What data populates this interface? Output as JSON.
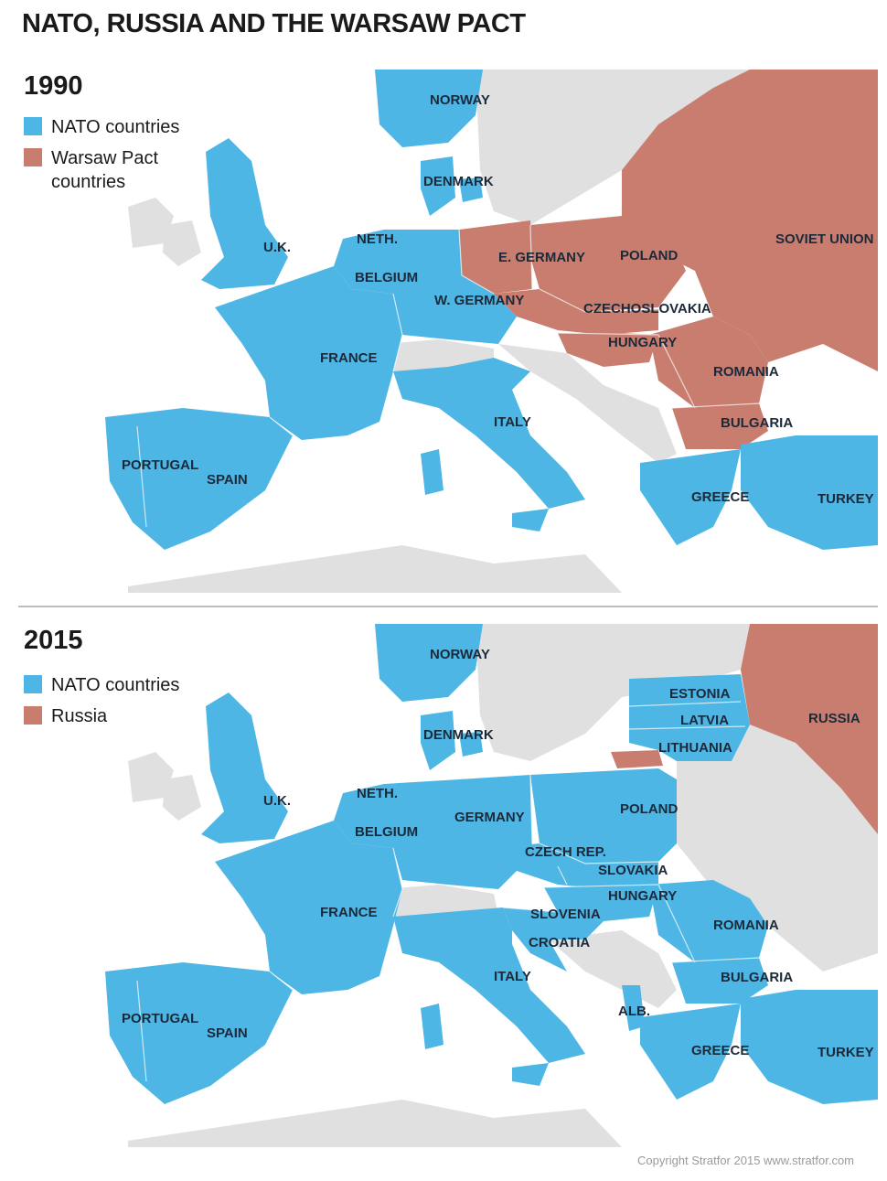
{
  "title": "NATO, RUSSIA AND THE WARSAW PACT",
  "colors": {
    "nato": "#4db6e4",
    "warsaw": "#c87d6f",
    "other_land": "#e0e0e0",
    "sea": "#ffffff"
  },
  "maps": [
    {
      "year": "1990",
      "legend": [
        {
          "label": "NATO countries",
          "color": "#4db6e4"
        },
        {
          "label": "Warsaw Pact countries",
          "color": "#c87d6f"
        }
      ],
      "labels": [
        "NORWAY",
        "DENMARK",
        "U.K.",
        "NETH.",
        "BELGIUM",
        "W. GERMANY",
        "E. GERMANY",
        "POLAND",
        "SOVIET UNION",
        "CZECHOSLOVAKIA",
        "HUNGARY",
        "ROMANIA",
        "BULGARIA",
        "FRANCE",
        "ITALY",
        "PORTUGAL",
        "SPAIN",
        "GREECE",
        "TURKEY"
      ]
    },
    {
      "year": "2015",
      "legend": [
        {
          "label": "NATO countries",
          "color": "#4db6e4"
        },
        {
          "label": "Russia",
          "color": "#c87d6f"
        }
      ],
      "labels": [
        "NORWAY",
        "DENMARK",
        "ESTONIA",
        "LATVIA",
        "LITHUANIA",
        "RUSSIA",
        "U.K.",
        "NETH.",
        "BELGIUM",
        "GERMANY",
        "POLAND",
        "CZECH REP.",
        "SLOVAKIA",
        "HUNGARY",
        "SLOVENIA",
        "CROATIA",
        "ROMANIA",
        "BULGARIA",
        "FRANCE",
        "ITALY",
        "ALB.",
        "PORTUGAL",
        "SPAIN",
        "GREECE",
        "TURKEY"
      ]
    }
  ],
  "footer": "Copyright Stratfor 2015   www.stratfor.com"
}
